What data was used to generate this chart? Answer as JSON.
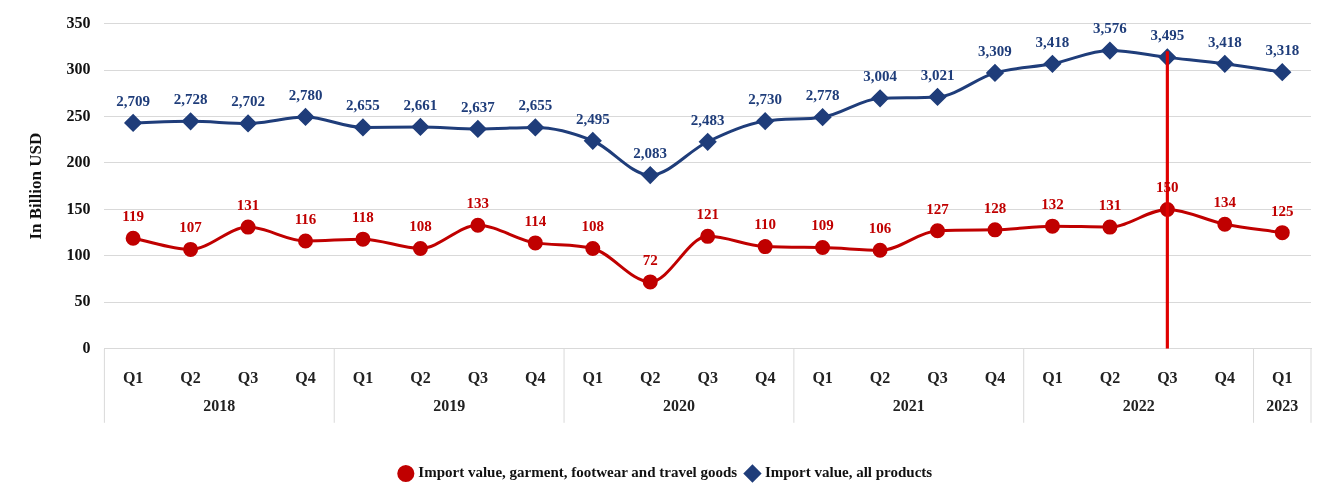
{
  "chart_data": {
    "type": "line",
    "ylabel": "In Billion USD",
    "categories": [
      "Q1",
      "Q2",
      "Q3",
      "Q4",
      "Q1",
      "Q2",
      "Q3",
      "Q4",
      "Q1",
      "Q2",
      "Q3",
      "Q4",
      "Q1",
      "Q2",
      "Q3",
      "Q4",
      "Q1",
      "Q2",
      "Q3",
      "Q4",
      "Q1"
    ],
    "annotations": [
      "2018",
      "2019",
      "2020",
      "2021",
      "2022",
      "2023"
    ],
    "series": [
      {
        "name": "Import value, garment, footwear and travel goods",
        "color": "#c00000",
        "marker": "circle",
        "values": [
          119,
          107,
          131,
          116,
          118,
          108,
          133,
          114,
          108,
          72,
          121,
          110,
          109,
          106,
          127,
          128,
          132,
          131,
          150,
          134,
          125
        ],
        "value_labels": [
          "119",
          "107",
          "131",
          "116",
          "118",
          "108",
          "133",
          "114",
          "108",
          "72",
          "121",
          "110",
          "109",
          "106",
          "127",
          "128",
          "132",
          "131",
          "150",
          "134",
          "125"
        ]
      },
      {
        "name": "Import value, all products",
        "color": "#1f3d7a",
        "marker": "diamond",
        "axis": "y2",
        "values": [
          2709,
          2728,
          2702,
          2780,
          2655,
          2661,
          2637,
          2655,
          2495,
          2083,
          2483,
          2730,
          2778,
          3004,
          3021,
          3309,
          3418,
          3576,
          3495,
          3418,
          3318
        ],
        "value_labels": [
          "2,709",
          "2,728",
          "2,702",
          "2,780",
          "2,655",
          "2,661",
          "2,637",
          "2,655",
          "2,495",
          "2,083",
          "2,483",
          "2,730",
          "2,778",
          "3,004",
          "3,021",
          "3,309",
          "3,418",
          "3,576",
          "3,495",
          "3,418",
          "3,318"
        ]
      },
      {
        "type": "bar",
        "color": "#e00000",
        "values": [
          null,
          null,
          null,
          null,
          null,
          null,
          null,
          null,
          null,
          null,
          null,
          null,
          null,
          null,
          null,
          null,
          null,
          null,
          320,
          null,
          null
        ]
      }
    ],
    "ylim": [
      0,
      350
    ],
    "yticks": [
      0,
      50,
      100,
      150,
      200,
      250,
      300,
      350
    ],
    "y2lim": [
      0,
      3900
    ],
    "grid": "y",
    "legend": "bottom"
  }
}
